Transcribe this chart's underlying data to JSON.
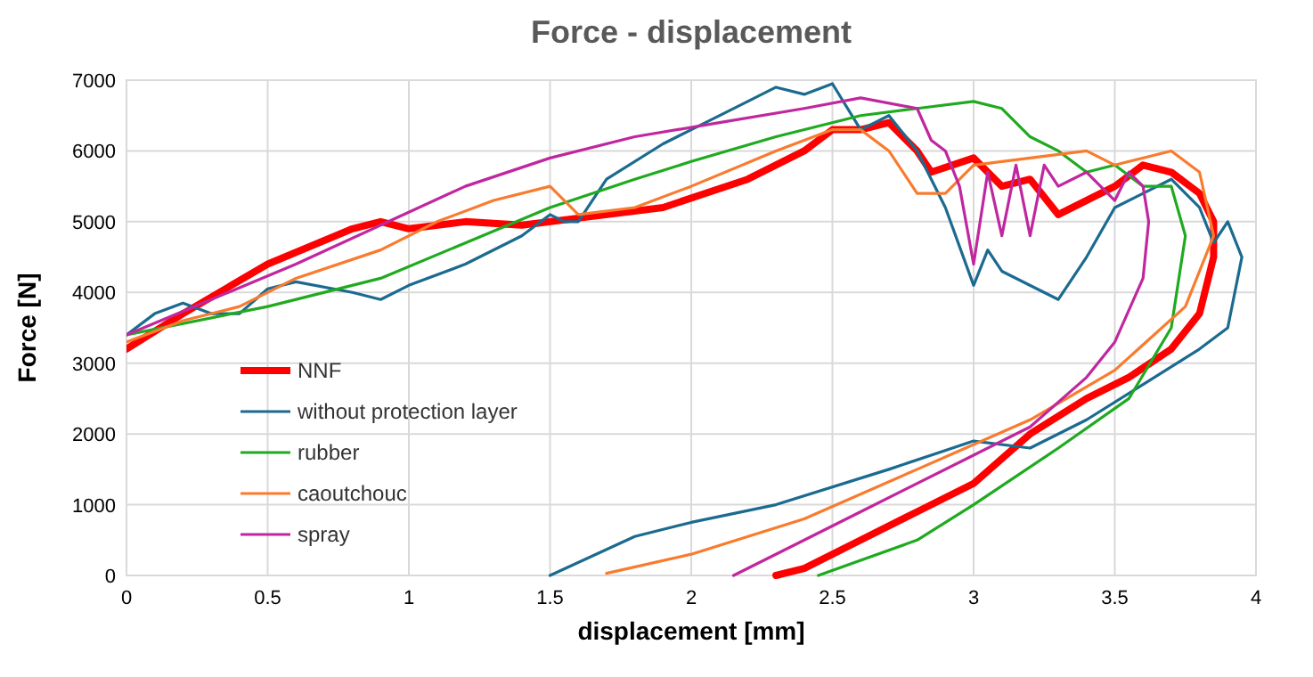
{
  "chart_data": {
    "type": "line",
    "title": "Force - displacement",
    "xlabel": "displacement [mm]",
    "ylabel": "Force [N]",
    "xlim": [
      0,
      4
    ],
    "xticks": [
      0,
      0.5,
      1,
      1.5,
      2,
      2.5,
      3,
      3.5,
      4
    ],
    "ylim": [
      0,
      7000
    ],
    "yticks": [
      0,
      1000,
      2000,
      3000,
      4000,
      5000,
      6000,
      7000
    ],
    "grid": true,
    "legend": "bottom left",
    "marker": "none",
    "line_style": "solid",
    "series": [
      {
        "name": "NNF",
        "color": "#ff0000",
        "x": [
          0,
          0.2,
          0.5,
          0.8,
          0.9,
          1.0,
          1.2,
          1.4,
          1.6,
          1.9,
          2.2,
          2.4,
          2.5,
          2.6,
          2.7,
          2.8,
          2.85,
          3.0,
          3.1,
          3.2,
          3.3,
          3.5,
          3.6,
          3.7,
          3.8,
          3.85,
          3.85,
          3.8,
          3.7,
          3.55,
          3.4,
          3.2,
          3.0,
          2.8,
          2.6,
          2.4,
          2.3
        ],
        "values": [
          3200,
          3700,
          4400,
          4900,
          5000,
          4900,
          5000,
          4950,
          5050,
          5200,
          5600,
          6000,
          6300,
          6300,
          6400,
          6000,
          5700,
          5900,
          5500,
          5600,
          5100,
          5500,
          5800,
          5700,
          5400,
          5000,
          4500,
          3700,
          3200,
          2800,
          2500,
          2000,
          1300,
          900,
          500,
          100,
          0
        ]
      },
      {
        "name": "without protection layer",
        "color": "#1b6a8f",
        "x": [
          0,
          0.1,
          0.2,
          0.3,
          0.4,
          0.5,
          0.6,
          0.8,
          0.9,
          1.0,
          1.2,
          1.4,
          1.5,
          1.55,
          1.6,
          1.7,
          1.9,
          2.0,
          2.2,
          2.3,
          2.4,
          2.5,
          2.6,
          2.7,
          2.8,
          2.9,
          3.0,
          3.05,
          3.1,
          3.3,
          3.4,
          3.5,
          3.6,
          3.7,
          3.8,
          3.85,
          3.9,
          3.95,
          3.9,
          3.8,
          3.6,
          3.4,
          3.2,
          3.0,
          2.7,
          2.3,
          2.0,
          1.8,
          1.5
        ],
        "values": [
          3400,
          3700,
          3850,
          3700,
          3700,
          4050,
          4150,
          4000,
          3900,
          4100,
          4400,
          4800,
          5100,
          5000,
          5000,
          5600,
          6100,
          6300,
          6700,
          6900,
          6800,
          6950,
          6300,
          6500,
          6000,
          5200,
          4100,
          4600,
          4300,
          3900,
          4500,
          5200,
          5400,
          5600,
          5200,
          4700,
          5000,
          4500,
          3500,
          3200,
          2700,
          2200,
          1800,
          1900,
          1500,
          1000,
          750,
          550,
          0
        ]
      },
      {
        "name": "rubber",
        "color": "#1faa1f",
        "x": [
          0,
          0.5,
          0.9,
          1.2,
          1.5,
          1.8,
          2.0,
          2.3,
          2.6,
          2.8,
          3.0,
          3.1,
          3.2,
          3.3,
          3.4,
          3.5,
          3.6,
          3.7,
          3.75,
          3.7,
          3.55,
          3.3,
          3.0,
          2.8,
          2.45
        ],
        "values": [
          3400,
          3800,
          4200,
          4700,
          5200,
          5600,
          5850,
          6200,
          6500,
          6600,
          6700,
          6600,
          6200,
          6000,
          5700,
          5800,
          5500,
          5500,
          4800,
          3500,
          2500,
          1800,
          1000,
          500,
          0
        ]
      },
      {
        "name": "caoutchouc",
        "color": "#f97b2e",
        "x": [
          0,
          0.2,
          0.4,
          0.6,
          0.9,
          1.1,
          1.3,
          1.5,
          1.6,
          1.8,
          2.0,
          2.3,
          2.5,
          2.6,
          2.7,
          2.8,
          2.9,
          3.0,
          3.2,
          3.4,
          3.5,
          3.7,
          3.8,
          3.85,
          3.75,
          3.5,
          3.2,
          2.8,
          2.4,
          2.0,
          1.7
        ],
        "values": [
          3300,
          3600,
          3800,
          4200,
          4600,
          5000,
          5300,
          5500,
          5100,
          5200,
          5500,
          6000,
          6300,
          6300,
          6000,
          5400,
          5400,
          5800,
          5900,
          6000,
          5800,
          6000,
          5700,
          4800,
          3800,
          2900,
          2200,
          1500,
          800,
          300,
          30
        ]
      },
      {
        "name": "spray",
        "color": "#c0279f",
        "x": [
          0,
          0.3,
          0.6,
          0.9,
          1.2,
          1.5,
          1.8,
          2.1,
          2.4,
          2.6,
          2.8,
          2.85,
          2.9,
          2.95,
          3.0,
          3.05,
          3.1,
          3.15,
          3.2,
          3.25,
          3.3,
          3.4,
          3.5,
          3.55,
          3.6,
          3.62,
          3.6,
          3.5,
          3.4,
          3.2,
          3.0,
          2.6,
          2.35,
          2.15
        ],
        "values": [
          3400,
          3900,
          4400,
          4950,
          5500,
          5900,
          6200,
          6400,
          6600,
          6750,
          6600,
          6150,
          6000,
          5500,
          4400,
          5700,
          4800,
          5800,
          4800,
          5800,
          5500,
          5700,
          5300,
          5700,
          5500,
          5000,
          4200,
          3300,
          2800,
          2100,
          1700,
          900,
          400,
          0
        ]
      }
    ]
  }
}
